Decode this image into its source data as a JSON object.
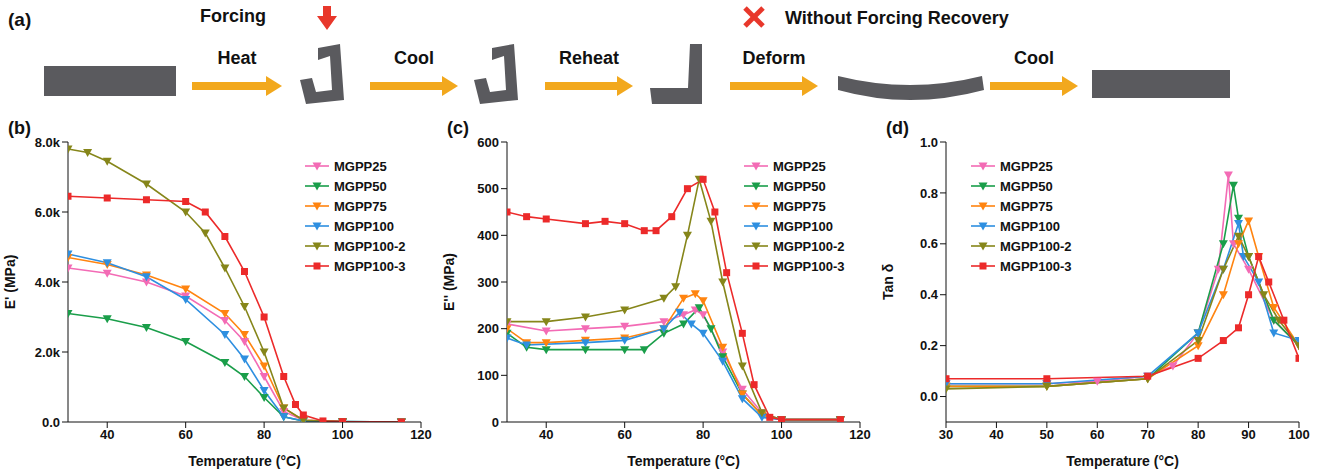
{
  "panel_a": {
    "label": "(a)",
    "forcing": "Forcing",
    "note": "Without Forcing Recovery",
    "steps": [
      "Heat",
      "Cool",
      "Reheat",
      "Deform",
      "Cool"
    ]
  },
  "chart_data": [
    {
      "type": "line",
      "title": "(b)",
      "x_label": "Temperature (°C)",
      "y_label": "E' (MPa)",
      "xlim": [
        30,
        120
      ],
      "xticks": [
        40,
        60,
        80,
        100,
        120
      ],
      "ylim": [
        0,
        8000
      ],
      "yticks": [
        {
          "value": 0,
          "label": "0.0"
        },
        {
          "value": 2000,
          "label": "2.0k"
        },
        {
          "value": 4000,
          "label": "4.0k"
        },
        {
          "value": 6000,
          "label": "6.0k"
        },
        {
          "value": 8000,
          "label": "8.0k"
        }
      ],
      "legend": "upper right",
      "series": [
        {
          "name": "MGPP25",
          "color": "#f36bb5",
          "marker": "triangle-down",
          "x": [
            30,
            40,
            50,
            60,
            70,
            75,
            80,
            85,
            90,
            100,
            115
          ],
          "values": [
            4400,
            4250,
            4000,
            3600,
            2900,
            2300,
            1300,
            300,
            50,
            10,
            0
          ]
        },
        {
          "name": "MGPP50",
          "color": "#1a9e4a",
          "marker": "triangle-down",
          "x": [
            30,
            40,
            50,
            60,
            70,
            75,
            80,
            85,
            90,
            100,
            115
          ],
          "values": [
            3100,
            2950,
            2700,
            2300,
            1700,
            1300,
            700,
            150,
            30,
            10,
            0
          ]
        },
        {
          "name": "MGPP75",
          "color": "#ff8410",
          "marker": "triangle-down",
          "x": [
            30,
            40,
            50,
            60,
            70,
            75,
            80,
            85,
            90,
            100,
            115
          ],
          "values": [
            4700,
            4500,
            4200,
            3800,
            3100,
            2500,
            1600,
            400,
            50,
            10,
            0
          ]
        },
        {
          "name": "MGPP100",
          "color": "#2e8fe0",
          "marker": "triangle-down",
          "x": [
            30,
            40,
            50,
            60,
            70,
            75,
            80,
            85,
            90,
            100,
            115
          ],
          "values": [
            4800,
            4550,
            4150,
            3500,
            2500,
            1800,
            900,
            150,
            30,
            10,
            0
          ]
        },
        {
          "name": "MGPP100-2",
          "color": "#86861a",
          "marker": "triangle-down",
          "x": [
            30,
            35,
            40,
            50,
            60,
            65,
            70,
            75,
            80,
            85,
            90,
            100,
            115
          ],
          "values": [
            7800,
            7700,
            7450,
            6800,
            6000,
            5400,
            4400,
            3300,
            2000,
            400,
            50,
            10,
            0
          ]
        },
        {
          "name": "MGPP100-3",
          "color": "#ec2a2a",
          "marker": "square",
          "x": [
            30,
            40,
            50,
            60,
            65,
            70,
            75,
            80,
            85,
            88,
            90,
            95,
            100,
            115
          ],
          "values": [
            6450,
            6400,
            6350,
            6300,
            6000,
            5300,
            4300,
            3000,
            1300,
            500,
            200,
            30,
            10,
            0
          ]
        }
      ]
    },
    {
      "type": "line",
      "title": "(c)",
      "x_label": "Temperature (°C)",
      "y_label": "E'' (MPa)",
      "xlim": [
        30,
        120
      ],
      "xticks": [
        40,
        60,
        80,
        100,
        120
      ],
      "ylim": [
        0,
        600
      ],
      "yticks": [
        0,
        100,
        200,
        300,
        400,
        500,
        600
      ],
      "legend": "upper right",
      "series": [
        {
          "name": "MGPP25",
          "color": "#f36bb5",
          "marker": "triangle-down",
          "x": [
            30,
            40,
            50,
            60,
            70,
            75,
            78,
            80,
            85,
            90,
            95,
            100,
            115
          ],
          "values": [
            210,
            195,
            200,
            205,
            215,
            230,
            240,
            230,
            150,
            70,
            20,
            5,
            5
          ]
        },
        {
          "name": "MGPP50",
          "color": "#1a9e4a",
          "marker": "triangle-down",
          "x": [
            30,
            35,
            40,
            50,
            60,
            65,
            70,
            75,
            79,
            82,
            85,
            90,
            95,
            100,
            115
          ],
          "values": [
            190,
            160,
            155,
            155,
            155,
            155,
            190,
            210,
            245,
            200,
            140,
            60,
            15,
            5,
            5
          ]
        },
        {
          "name": "MGPP75",
          "color": "#ff8410",
          "marker": "triangle-down",
          "x": [
            30,
            35,
            40,
            50,
            60,
            70,
            75,
            78,
            80,
            85,
            90,
            95,
            100,
            115
          ],
          "values": [
            200,
            170,
            170,
            175,
            180,
            200,
            265,
            275,
            260,
            160,
            60,
            15,
            5,
            5
          ]
        },
        {
          "name": "MGPP100",
          "color": "#2e8fe0",
          "marker": "triangle-down",
          "x": [
            30,
            35,
            50,
            60,
            70,
            74,
            77,
            80,
            85,
            90,
            95,
            100,
            115
          ],
          "values": [
            180,
            165,
            170,
            175,
            200,
            235,
            210,
            190,
            130,
            50,
            10,
            5,
            5
          ]
        },
        {
          "name": "MGPP100-2",
          "color": "#86861a",
          "marker": "triangle-down",
          "x": [
            30,
            40,
            50,
            60,
            70,
            73,
            76,
            79,
            82,
            85,
            90,
            95,
            100,
            115
          ],
          "values": [
            215,
            215,
            225,
            240,
            265,
            290,
            400,
            520,
            430,
            300,
            120,
            20,
            5,
            5
          ]
        },
        {
          "name": "MGPP100-3",
          "color": "#ec2a2a",
          "marker": "square",
          "x": [
            30,
            35,
            40,
            50,
            55,
            60,
            65,
            68,
            72,
            76,
            80,
            83,
            86,
            90,
            93,
            97,
            100,
            115
          ],
          "values": [
            450,
            440,
            435,
            425,
            430,
            425,
            410,
            410,
            440,
            500,
            520,
            450,
            320,
            190,
            80,
            10,
            5,
            5
          ]
        }
      ]
    },
    {
      "type": "line",
      "title": "(d)",
      "x_label": "Temperature (°C)",
      "y_label": "Tan δ",
      "xlim": [
        30,
        100
      ],
      "xticks": [
        30,
        40,
        50,
        60,
        70,
        80,
        90,
        100
      ],
      "ylim": [
        -0.1,
        1.0
      ],
      "yticks": [
        {
          "value": 0,
          "label": "0.0"
        },
        0.2,
        0.4,
        0.6,
        0.8,
        {
          "value": 1,
          "label": "1.0"
        }
      ],
      "legend": "upper left",
      "series": [
        {
          "name": "MGPP25",
          "color": "#f36bb5",
          "marker": "triangle-down",
          "x": [
            30,
            50,
            60,
            70,
            75,
            80,
            84,
            86,
            87,
            90,
            95,
            100
          ],
          "values": [
            0.05,
            0.05,
            0.06,
            0.08,
            0.12,
            0.25,
            0.5,
            0.87,
            0.6,
            0.5,
            0.3,
            0.2
          ]
        },
        {
          "name": "MGPP50",
          "color": "#1a9e4a",
          "marker": "triangle-down",
          "x": [
            30,
            50,
            70,
            80,
            85,
            87,
            88,
            90,
            95,
            100
          ],
          "values": [
            0.04,
            0.04,
            0.07,
            0.25,
            0.6,
            0.83,
            0.7,
            0.55,
            0.3,
            0.2
          ]
        },
        {
          "name": "MGPP75",
          "color": "#ff8410",
          "marker": "triangle-down",
          "x": [
            30,
            50,
            70,
            80,
            85,
            88,
            90,
            92,
            95,
            100
          ],
          "values": [
            0.04,
            0.04,
            0.07,
            0.2,
            0.4,
            0.6,
            0.69,
            0.55,
            0.35,
            0.2
          ]
        },
        {
          "name": "MGPP100",
          "color": "#2e8fe0",
          "marker": "triangle-down",
          "x": [
            30,
            50,
            70,
            80,
            85,
            88,
            89,
            92,
            95,
            100
          ],
          "values": [
            0.05,
            0.05,
            0.08,
            0.25,
            0.5,
            0.68,
            0.55,
            0.45,
            0.25,
            0.22
          ]
        },
        {
          "name": "MGPP100-2",
          "color": "#86861a",
          "marker": "triangle-down",
          "x": [
            30,
            50,
            70,
            80,
            85,
            88,
            90,
            93,
            96,
            100
          ],
          "values": [
            0.03,
            0.04,
            0.07,
            0.22,
            0.5,
            0.63,
            0.55,
            0.4,
            0.3,
            0.2
          ]
        },
        {
          "name": "MGPP100-3",
          "color": "#ec2a2a",
          "marker": "square",
          "x": [
            30,
            50,
            70,
            80,
            85,
            88,
            90,
            92,
            94,
            97,
            100
          ],
          "values": [
            0.07,
            0.07,
            0.08,
            0.15,
            0.22,
            0.27,
            0.4,
            0.55,
            0.45,
            0.3,
            0.15
          ]
        }
      ]
    }
  ]
}
